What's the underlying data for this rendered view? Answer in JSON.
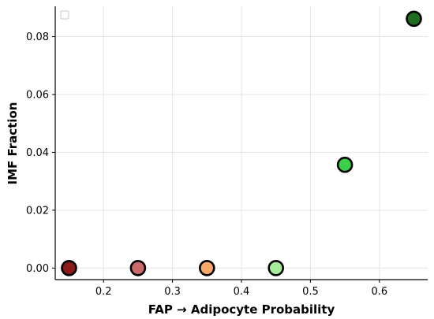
{
  "chart_data": {
    "type": "scatter",
    "title": "",
    "xlabel": "FAP → Adipocyte Probability",
    "ylabel": "IMF Fraction",
    "xlim": [
      0.13,
      0.67
    ],
    "ylim": [
      -0.004,
      0.0905
    ],
    "xticks": [
      0.2,
      0.3,
      0.4,
      0.5,
      0.6
    ],
    "xtick_labels": [
      "0.2",
      "0.3",
      "0.4",
      "0.5",
      "0.6"
    ],
    "yticks": [
      0.0,
      0.02,
      0.04,
      0.06,
      0.08
    ],
    "ytick_labels": [
      "0.00",
      "0.02",
      "0.04",
      "0.06",
      "0.08"
    ],
    "grid": true,
    "legend": "top-left",
    "points": [
      {
        "x": 0.15,
        "y": 0.0,
        "color": "#8b1a1a"
      },
      {
        "x": 0.25,
        "y": 0.0,
        "color": "#cd6a6a"
      },
      {
        "x": 0.35,
        "y": 0.0,
        "color": "#f7a86a"
      },
      {
        "x": 0.45,
        "y": 0.0,
        "color": "#a6ec9a"
      },
      {
        "x": 0.55,
        "y": 0.0357,
        "color": "#3ccf48"
      },
      {
        "x": 0.65,
        "y": 0.0862,
        "color": "#1e6e1e"
      }
    ]
  }
}
